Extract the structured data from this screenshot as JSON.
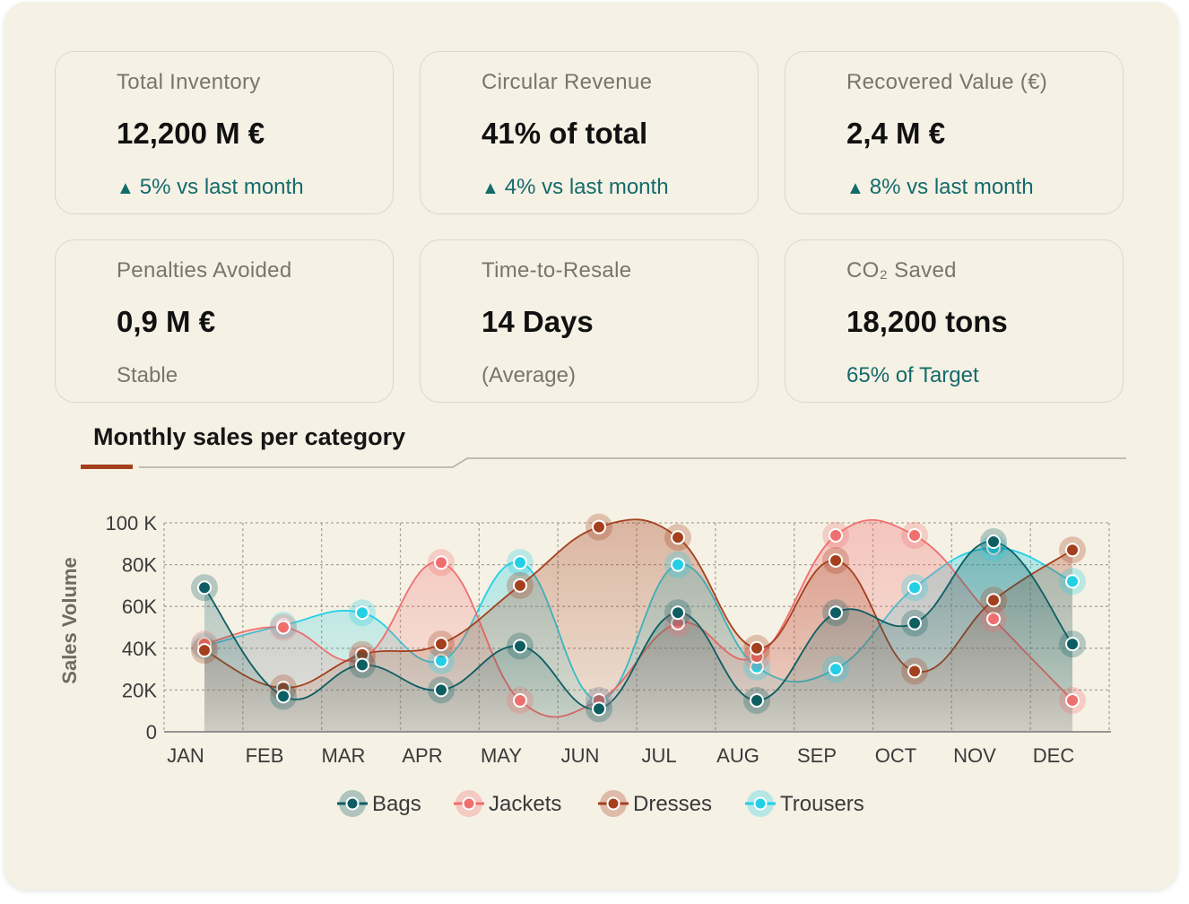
{
  "kpis": [
    {
      "label": "Total Inventory",
      "value": "12,200 M €",
      "delta_arrow": "▲",
      "delta": "5% vs last month"
    },
    {
      "label": "Circular Revenue",
      "value": "41% of total",
      "delta_arrow": "▲",
      "delta": "4% vs last month"
    },
    {
      "label": "Recovered Value (€)",
      "value": "2,4 M €",
      "delta_arrow": "▲",
      "delta": "8% vs last month"
    },
    {
      "label": "Penalties Avoided",
      "value": "0,9 M €",
      "delta": "Stable"
    },
    {
      "label": "Time-to-Resale",
      "value": "14 Days",
      "delta": "(Average)"
    },
    {
      "label": "CO₂ Saved",
      "value": "18,200 tons",
      "delta": "65% of Target"
    }
  ],
  "section": {
    "title": "Monthly sales per category"
  },
  "chart_data": {
    "type": "area",
    "title": "Monthly sales per category",
    "xlabel": "",
    "ylabel": "Sales Volume",
    "categories": [
      "JAN",
      "FEB",
      "MAR",
      "APR",
      "MAY",
      "JUN",
      "JUL",
      "AUG",
      "SEP",
      "OCT",
      "NOV",
      "DEC"
    ],
    "ylim": [
      0,
      100
    ],
    "yticks": [
      0,
      20,
      40,
      60,
      80,
      100
    ],
    "ytick_labels": [
      "0",
      "20K",
      "40K",
      "60K",
      "80K",
      "100 K"
    ],
    "grid": true,
    "legend_position": "bottom",
    "series": [
      {
        "name": "Bags",
        "color": "#0d5e62",
        "values": [
          69,
          17,
          32,
          20,
          41,
          11,
          57,
          15,
          57,
          52,
          91,
          42
        ]
      },
      {
        "name": "Jackets",
        "color": "#ef6f6f",
        "values": [
          42,
          50,
          35,
          81,
          15,
          15,
          52,
          36,
          94,
          94,
          54,
          15
        ]
      },
      {
        "name": "Dresses",
        "color": "#a4401e",
        "values": [
          39,
          21,
          37,
          42,
          70,
          98,
          93,
          40,
          82,
          29,
          63,
          87
        ]
      },
      {
        "name": "Trousers",
        "color": "#22d0e6",
        "values": [
          41,
          51,
          57,
          34,
          81,
          15,
          80,
          31,
          30,
          69,
          88,
          72
        ]
      }
    ]
  }
}
